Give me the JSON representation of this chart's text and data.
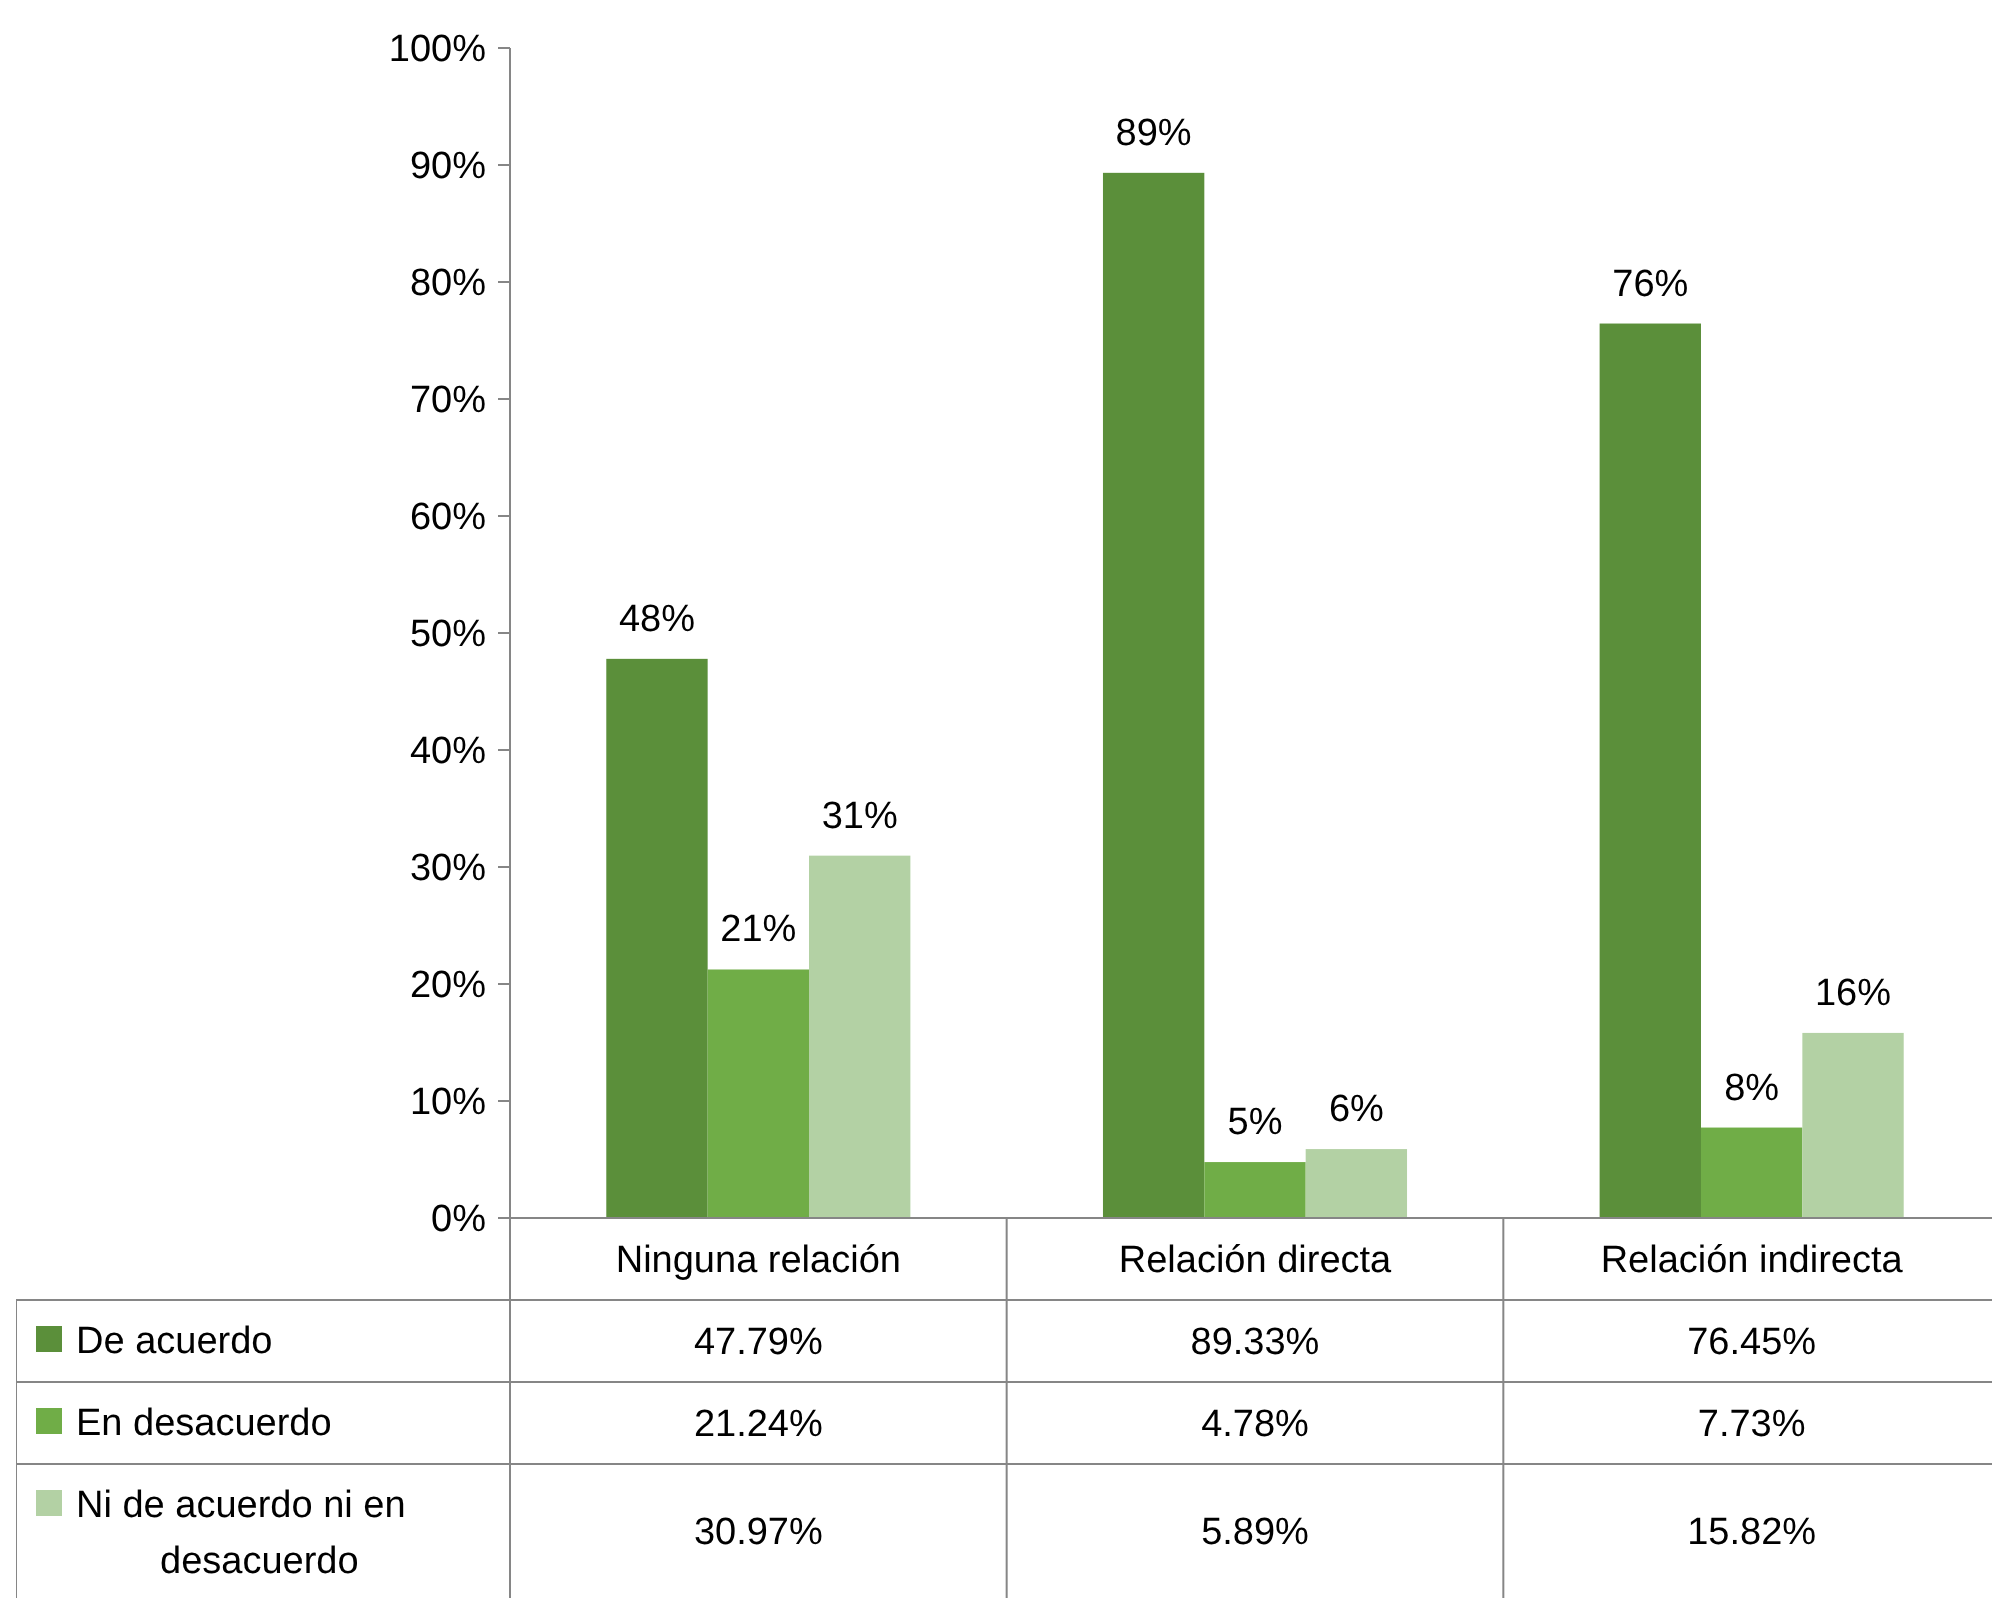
{
  "chart_data": {
    "type": "bar",
    "categories": [
      "Ninguna relación",
      "Relación directa",
      "Relación indirecta"
    ],
    "series": [
      {
        "name": "De acuerdo",
        "color": "#5b8f3a",
        "values": [
          47.79,
          89.33,
          76.45
        ],
        "value_labels": [
          "48%",
          "89%",
          "76%"
        ]
      },
      {
        "name": "En desacuerdo",
        "color": "#70ad47",
        "values": [
          21.24,
          4.78,
          7.73
        ],
        "value_labels": [
          "21%",
          "5%",
          "8%"
        ]
      },
      {
        "name": "Ni de acuerdo ni en desacuerdo",
        "color": "#b3d1a4",
        "values": [
          30.97,
          5.89,
          15.82
        ],
        "value_labels": [
          "31%",
          "6%",
          "16%"
        ]
      }
    ],
    "ylim": [
      0,
      100
    ],
    "yticks": [
      {
        "value": 0,
        "label": "0%"
      },
      {
        "value": 10,
        "label": "10%"
      },
      {
        "value": 20,
        "label": "20%"
      },
      {
        "value": 30,
        "label": "30%"
      },
      {
        "value": 40,
        "label": "40%"
      },
      {
        "value": 50,
        "label": "50%"
      },
      {
        "value": 60,
        "label": "60%"
      },
      {
        "value": 70,
        "label": "70%"
      },
      {
        "value": 80,
        "label": "80%"
      },
      {
        "value": 90,
        "label": "90%"
      },
      {
        "value": 100,
        "label": "100%"
      }
    ],
    "annotations": [
      "47.79%",
      "89.33%",
      "76.45%",
      "21.24%",
      "4.78%",
      "7.73%",
      "30.97%",
      "5.89%",
      "15.82%"
    ],
    "legend": "bottom"
  }
}
